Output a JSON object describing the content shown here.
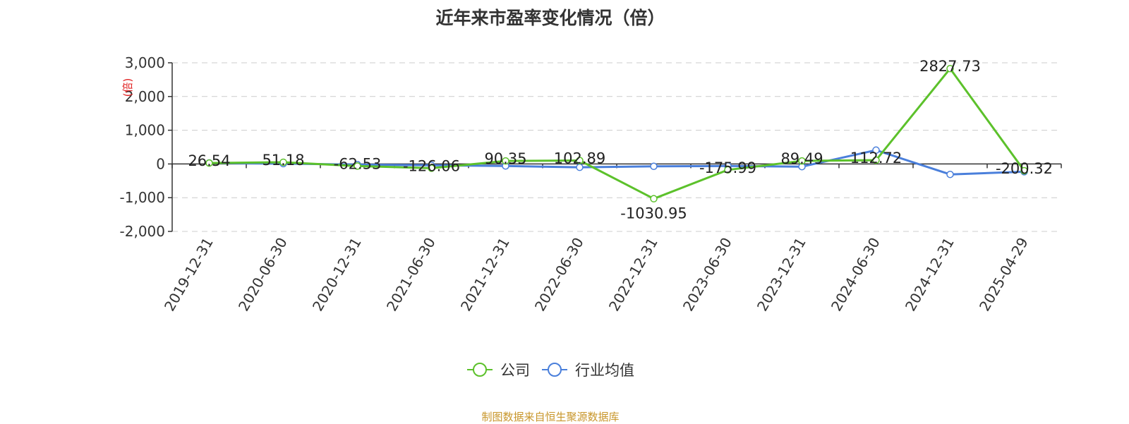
{
  "chart_data": {
    "type": "line",
    "title": "近年来市盈率变化情况（倍）",
    "ylabel": "(倍)",
    "ylim": [
      -2000,
      3000
    ],
    "yticks": [
      3000,
      2000,
      1000,
      0,
      -1000,
      -2000
    ],
    "ytick_labels": [
      "3,000",
      "2,000",
      "1,000",
      "0",
      "-1,000",
      "-2,000"
    ],
    "grid": true,
    "legend_position": "bottom",
    "categories": [
      "2019-12-31",
      "2020-06-30",
      "2020-12-31",
      "2021-06-30",
      "2021-12-31",
      "2022-06-30",
      "2022-12-31",
      "2023-06-30",
      "2023-12-31",
      "2024-06-30",
      "2024-12-31",
      "2025-04-29"
    ],
    "series": [
      {
        "name": "公司",
        "color": "#5cc12b",
        "values": [
          26.54,
          51.18,
          -62.53,
          -126.06,
          90.35,
          102.89,
          -1030.95,
          -175.99,
          89.49,
          112.72,
          2827.73,
          -200.32
        ],
        "labels": [
          "26.54",
          "51.18",
          "-62.53",
          "-126.06",
          "90.35",
          "102.89",
          "-1030.95",
          "-175.99",
          "89.49",
          "112.72",
          "2827.73",
          "-200.32"
        ]
      },
      {
        "name": "行业均值",
        "color": "#4a7fdb",
        "values": [
          30,
          10,
          -20,
          -40,
          -60,
          -100,
          -70,
          -60,
          -80,
          410,
          -310,
          -230
        ]
      }
    ]
  },
  "source_note": "制图数据来自恒生聚源数据库"
}
